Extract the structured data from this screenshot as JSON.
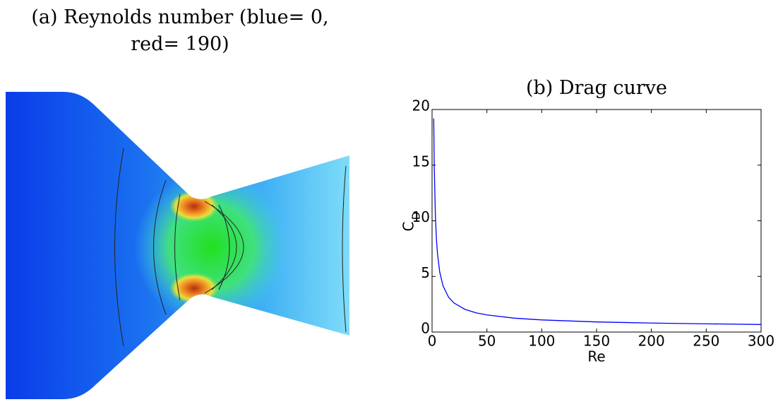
{
  "chart_data": [
    {
      "type": "contour",
      "title": "(a) Reynolds number (blue= 0, red= 190)"
    },
    {
      "type": "line",
      "title": "(b) Drag curve",
      "xlabel": "Re",
      "ylabel": "C",
      "ylabel_sub": "D",
      "x": [
        1.5,
        2,
        3,
        4,
        5,
        7,
        10,
        15,
        20,
        30,
        40,
        50,
        75,
        100,
        150,
        200,
        250,
        300
      ],
      "series": [
        {
          "color": "#0000ff",
          "values": [
            19.2,
            14.9,
            10.55,
            8.33,
            6.97,
            5.39,
            4.15,
            3.14,
            2.61,
            2.04,
            1.73,
            1.54,
            1.25,
            1.09,
            0.91,
            0.81,
            0.74,
            0.68
          ]
        }
      ],
      "xlim": [
        0,
        300
      ],
      "xticks": [
        0,
        50,
        100,
        150,
        200,
        250,
        300
      ],
      "ylim": [
        0,
        20
      ],
      "yticks": [
        0,
        5,
        10,
        15,
        20
      ]
    }
  ]
}
